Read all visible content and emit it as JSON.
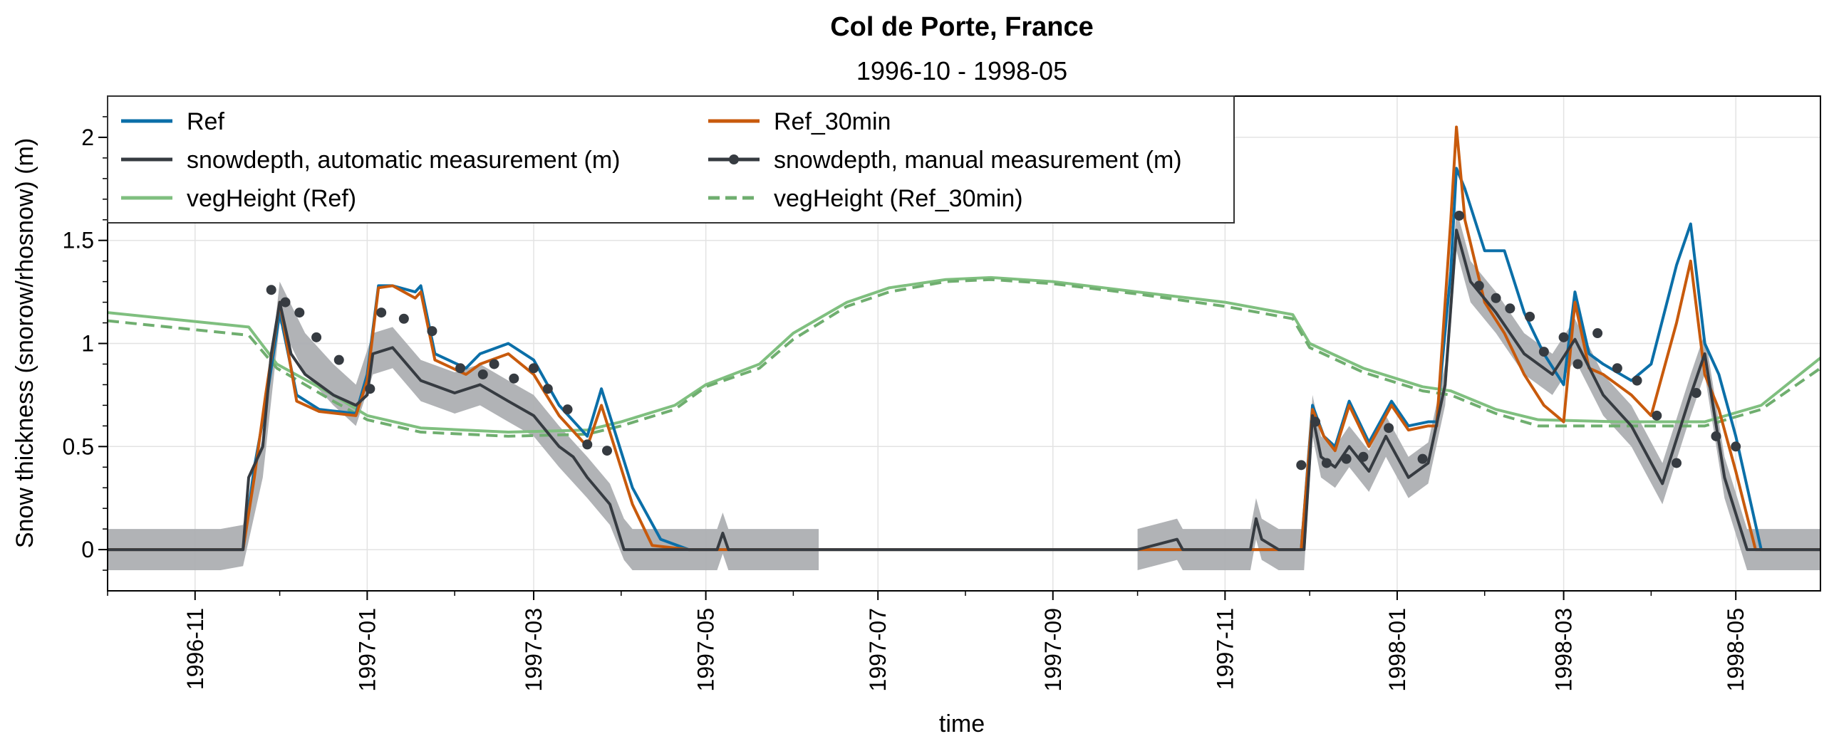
{
  "chart_data": {
    "type": "line",
    "title": "Col de Porte, France",
    "subtitle": "1996-10 - 1998-05",
    "xlabel": "time",
    "ylabel": "Snow thickness (snorow/rhosnow) (m)",
    "xlim": [
      "1996-10-01",
      "1998-05-31"
    ],
    "ylim": [
      -0.2,
      2.2
    ],
    "x_ticks": [
      "1996-11",
      "1997-01",
      "1997-03",
      "1997-05",
      "1997-07",
      "1997-09",
      "1997-11",
      "1998-01",
      "1998-03",
      "1998-05"
    ],
    "y_ticks": [
      {
        "value": 0,
        "label": "0"
      },
      {
        "value": 0.5,
        "label": "0.5"
      },
      {
        "value": 1,
        "label": "1"
      },
      {
        "value": 1.5,
        "label": "1.5"
      },
      {
        "value": 2,
        "label": "2"
      }
    ],
    "grid": true,
    "legend": {
      "position": "top-left",
      "columns": 2,
      "entries": [
        {
          "label": "Ref",
          "color": "#0b6fa8",
          "style": "solid"
        },
        {
          "label": "Ref_30min",
          "color": "#c85a0c",
          "style": "solid"
        },
        {
          "label": "snowdepth, automatic measurement (m)",
          "color": "#363b41",
          "style": "solid"
        },
        {
          "label": "snowdepth, manual measurement (m)",
          "color": "#363b41",
          "style": "solid-marker"
        },
        {
          "label": "vegHeight (Ref)",
          "color": "#7fbf7f",
          "style": "solid"
        },
        {
          "label": "vegHeight (Ref_30min)",
          "color": "#6fae6f",
          "style": "dashed"
        }
      ]
    },
    "band": {
      "color": "#a8abae",
      "half_width": 0.1,
      "segments": [
        {
          "x": [
            "1996-10-01",
            "1996-11-10",
            "1996-11-18",
            "1996-11-25",
            "1996-12-01",
            "1996-12-10",
            "1996-12-20",
            "1996-12-28",
            "1997-01-03",
            "1997-01-10",
            "1997-01-20",
            "1997-02-01",
            "1997-02-10",
            "1997-02-20",
            "1997-03-01",
            "1997-03-10",
            "1997-03-20",
            "1997-03-28",
            "1997-04-02",
            "1997-04-05",
            "1997-05-05",
            "1997-05-07",
            "1997-05-09",
            "1997-06-10"
          ],
          "y": [
            0,
            0,
            0.02,
            0.45,
            1.2,
            0.95,
            0.8,
            0.7,
            0.95,
            0.98,
            0.82,
            0.76,
            0.8,
            0.72,
            0.65,
            0.5,
            0.35,
            0.22,
            0.05,
            0,
            0,
            0.08,
            0,
            0
          ]
        },
        {
          "x": [
            "1997-10-01",
            "1997-10-15",
            "1997-10-17",
            "1997-11-10",
            "1997-11-12",
            "1997-11-14",
            "1997-11-20",
            "1997-11-29",
            "1997-12-02",
            "1997-12-05",
            "1997-12-10",
            "1997-12-15",
            "1997-12-22",
            "1997-12-28",
            "1998-01-05",
            "1998-01-12",
            "1998-01-18",
            "1998-01-22",
            "1998-01-27",
            "1998-02-05",
            "1998-02-15",
            "1998-02-25",
            "1998-03-05",
            "1998-03-15",
            "1998-03-25",
            "1998-04-05",
            "1998-04-15",
            "1998-04-20",
            "1998-04-27",
            "1998-05-05",
            "1998-05-31"
          ],
          "y": [
            0,
            0.05,
            0,
            0,
            0.15,
            0.05,
            0,
            0,
            0.65,
            0.45,
            0.4,
            0.5,
            0.38,
            0.55,
            0.35,
            0.42,
            0.8,
            1.55,
            1.3,
            1.15,
            0.95,
            0.85,
            1.02,
            0.75,
            0.6,
            0.32,
            0.75,
            0.95,
            0.35,
            0,
            0
          ]
        }
      ]
    },
    "series": [
      {
        "name": "vegHeight (Ref)",
        "color": "#7fbf7f",
        "dash": false,
        "x": [
          "1996-10-01",
          "1996-11-20",
          "1996-11-30",
          "1996-12-20",
          "1997-01-01",
          "1997-01-20",
          "1997-02-20",
          "1997-03-20",
          "1997-04-01",
          "1997-04-20",
          "1997-05-01",
          "1997-05-20",
          "1997-06-01",
          "1997-06-20",
          "1997-07-05",
          "1997-07-25",
          "1997-08-10",
          "1997-09-01",
          "1997-10-01",
          "1997-11-01",
          "1997-11-25",
          "1997-12-01",
          "1997-12-20",
          "1998-01-10",
          "1998-01-20",
          "1998-02-05",
          "1998-02-20",
          "1998-03-20",
          "1998-04-20",
          "1998-05-10",
          "1998-05-31"
        ],
        "y": [
          1.15,
          1.08,
          0.9,
          0.75,
          0.65,
          0.59,
          0.57,
          0.58,
          0.62,
          0.7,
          0.8,
          0.9,
          1.05,
          1.2,
          1.27,
          1.31,
          1.32,
          1.3,
          1.25,
          1.2,
          1.14,
          1.0,
          0.88,
          0.79,
          0.77,
          0.68,
          0.63,
          0.62,
          0.62,
          0.7,
          0.93
        ]
      },
      {
        "name": "vegHeight (Ref_30min)",
        "color": "#6fae6f",
        "dash": true,
        "x": [
          "1996-10-01",
          "1996-11-20",
          "1996-11-30",
          "1996-12-20",
          "1997-01-01",
          "1997-01-20",
          "1997-02-20",
          "1997-03-20",
          "1997-04-01",
          "1997-04-20",
          "1997-05-01",
          "1997-05-20",
          "1997-06-01",
          "1997-06-20",
          "1997-07-05",
          "1997-07-25",
          "1997-08-10",
          "1997-09-01",
          "1997-10-01",
          "1997-11-01",
          "1997-11-25",
          "1997-12-01",
          "1997-12-20",
          "1998-01-10",
          "1998-01-20",
          "1998-02-05",
          "1998-02-20",
          "1998-03-20",
          "1998-04-20",
          "1998-05-10",
          "1998-05-31"
        ],
        "y": [
          1.11,
          1.04,
          0.88,
          0.72,
          0.63,
          0.57,
          0.55,
          0.56,
          0.6,
          0.68,
          0.79,
          0.88,
          1.02,
          1.18,
          1.25,
          1.3,
          1.31,
          1.29,
          1.24,
          1.18,
          1.12,
          0.98,
          0.86,
          0.77,
          0.75,
          0.66,
          0.6,
          0.6,
          0.6,
          0.68,
          0.88
        ]
      },
      {
        "name": "Ref",
        "color": "#0b6fa8",
        "dash": false,
        "x": [
          "1996-10-01",
          "1996-11-18",
          "1996-11-22",
          "1996-11-26",
          "1996-12-01",
          "1996-12-07",
          "1996-12-15",
          "1996-12-28",
          "1997-01-01",
          "1997-01-05",
          "1997-01-10",
          "1997-01-18",
          "1997-01-20",
          "1997-01-25",
          "1997-02-05",
          "1997-02-10",
          "1997-02-20",
          "1997-03-01",
          "1997-03-10",
          "1997-03-20",
          "1997-03-25",
          "1997-04-05",
          "1997-04-15",
          "1997-04-25",
          "1997-10-01",
          "1997-11-28",
          "1997-12-02",
          "1997-12-06",
          "1997-12-10",
          "1997-12-15",
          "1997-12-22",
          "1997-12-30",
          "1998-01-05",
          "1998-01-12",
          "1998-01-15",
          "1998-01-20",
          "1998-01-22",
          "1998-01-25",
          "1998-02-01",
          "1998-02-08",
          "1998-02-15",
          "1998-02-22",
          "1998-03-01",
          "1998-03-05",
          "1998-03-10",
          "1998-03-15",
          "1998-03-25",
          "1998-04-01",
          "1998-04-10",
          "1998-04-15",
          "1998-04-20",
          "1998-04-25",
          "1998-05-01",
          "1998-05-10",
          "1998-05-31"
        ],
        "y": [
          0,
          0,
          0.4,
          0.7,
          1.15,
          0.75,
          0.68,
          0.66,
          0.85,
          1.28,
          1.28,
          1.25,
          1.28,
          0.95,
          0.88,
          0.95,
          1.0,
          0.92,
          0.7,
          0.55,
          0.78,
          0.3,
          0.05,
          0,
          0,
          0,
          0.7,
          0.55,
          0.5,
          0.72,
          0.52,
          0.72,
          0.6,
          0.62,
          0.62,
          1.35,
          1.85,
          1.75,
          1.45,
          1.45,
          1.15,
          0.95,
          0.8,
          1.25,
          0.95,
          0.9,
          0.82,
          0.9,
          1.38,
          1.58,
          1.0,
          0.85,
          0.55,
          0,
          0
        ]
      },
      {
        "name": "Ref_30min",
        "color": "#c85a0c",
        "dash": false,
        "x": [
          "1996-10-01",
          "1996-11-18",
          "1996-11-22",
          "1996-11-26",
          "1996-12-01",
          "1996-12-07",
          "1996-12-15",
          "1996-12-28",
          "1997-01-01",
          "1997-01-05",
          "1997-01-10",
          "1997-01-18",
          "1997-01-20",
          "1997-01-25",
          "1997-02-05",
          "1997-02-10",
          "1997-02-20",
          "1997-03-01",
          "1997-03-10",
          "1997-03-20",
          "1997-03-25",
          "1997-04-05",
          "1997-04-12",
          "1997-04-25",
          "1997-10-01",
          "1997-11-28",
          "1997-12-02",
          "1997-12-06",
          "1997-12-10",
          "1997-12-15",
          "1997-12-22",
          "1997-12-30",
          "1998-01-05",
          "1998-01-12",
          "1998-01-15",
          "1998-01-20",
          "1998-01-22",
          "1998-01-25",
          "1998-02-01",
          "1998-02-08",
          "1998-02-15",
          "1998-02-22",
          "1998-03-01",
          "1998-03-05",
          "1998-03-10",
          "1998-03-15",
          "1998-03-25",
          "1998-04-01",
          "1998-04-10",
          "1998-04-15",
          "1998-04-20",
          "1998-04-25",
          "1998-05-01",
          "1998-05-08",
          "1998-05-31"
        ],
        "y": [
          0,
          0,
          0.35,
          0.75,
          1.2,
          0.72,
          0.67,
          0.65,
          0.82,
          1.27,
          1.28,
          1.22,
          1.25,
          0.92,
          0.85,
          0.9,
          0.95,
          0.85,
          0.65,
          0.5,
          0.7,
          0.22,
          0.02,
          0,
          0,
          0,
          0.68,
          0.55,
          0.48,
          0.7,
          0.5,
          0.7,
          0.58,
          0.6,
          0.6,
          1.6,
          2.05,
          1.6,
          1.2,
          1.05,
          0.85,
          0.7,
          0.62,
          1.2,
          0.88,
          0.85,
          0.75,
          0.65,
          1.1,
          1.4,
          0.85,
          0.68,
          0.38,
          0,
          0
        ]
      },
      {
        "name": "snowdepth, automatic measurement (m)",
        "color": "#363b41",
        "dash": false,
        "x": [
          "1996-10-01",
          "1996-11-18",
          "1996-11-20",
          "1996-11-25",
          "1996-11-28",
          "1996-12-01",
          "1996-12-05",
          "1996-12-10",
          "1996-12-15",
          "1996-12-20",
          "1996-12-28",
          "1997-01-01",
          "1997-01-03",
          "1997-01-10",
          "1997-01-20",
          "1997-02-01",
          "1997-02-10",
          "1997-02-20",
          "1997-03-01",
          "1997-03-10",
          "1997-03-15",
          "1997-03-20",
          "1997-03-28",
          "1997-04-02",
          "1997-05-05",
          "1997-05-07",
          "1997-05-09",
          "1997-06-10",
          "1997-10-01",
          "1997-10-15",
          "1997-10-17",
          "1997-11-10",
          "1997-11-12",
          "1997-11-14",
          "1997-11-20",
          "1997-11-29",
          "1997-12-02",
          "1997-12-05",
          "1997-12-10",
          "1997-12-15",
          "1997-12-22",
          "1997-12-28",
          "1998-01-05",
          "1998-01-12",
          "1998-01-18",
          "1998-01-22",
          "1998-01-27",
          "1998-02-05",
          "1998-02-15",
          "1998-02-25",
          "1998-03-05",
          "1998-03-15",
          "1998-03-25",
          "1998-04-05",
          "1998-04-15",
          "1998-04-20",
          "1998-04-27",
          "1998-05-05",
          "1998-05-31"
        ],
        "y": [
          0,
          0,
          0.35,
          0.5,
          0.95,
          1.2,
          0.95,
          0.85,
          0.8,
          0.75,
          0.7,
          0.75,
          0.95,
          0.98,
          0.82,
          0.76,
          0.8,
          0.72,
          0.65,
          0.5,
          0.45,
          0.35,
          0.22,
          0,
          0,
          0.08,
          0,
          0,
          0,
          0.05,
          0,
          0,
          0.15,
          0.05,
          0,
          0,
          0.65,
          0.45,
          0.4,
          0.5,
          0.38,
          0.55,
          0.35,
          0.42,
          0.8,
          1.55,
          1.3,
          1.15,
          0.95,
          0.85,
          1.02,
          0.75,
          0.6,
          0.32,
          0.75,
          0.95,
          0.35,
          0,
          0
        ]
      },
      {
        "name": "snowdepth, manual measurement (m)",
        "color": "#363b41",
        "marker": true,
        "x": [
          "1996-11-28",
          "1996-12-03",
          "1996-12-08",
          "1996-12-14",
          "1996-12-22",
          "1997-01-02",
          "1997-01-06",
          "1997-01-14",
          "1997-01-24",
          "1997-02-03",
          "1997-02-11",
          "1997-02-15",
          "1997-02-22",
          "1997-03-01",
          "1997-03-06",
          "1997-03-13",
          "1997-03-20",
          "1997-03-27",
          "1997-11-28",
          "1997-12-03",
          "1997-12-07",
          "1997-12-14",
          "1997-12-20",
          "1997-12-29",
          "1998-01-10",
          "1998-01-23",
          "1998-01-30",
          "1998-02-05",
          "1998-02-10",
          "1998-02-17",
          "1998-02-22",
          "1998-03-01",
          "1998-03-06",
          "1998-03-13",
          "1998-03-20",
          "1998-03-27",
          "1998-04-03",
          "1998-04-10",
          "1998-04-17",
          "1998-04-24",
          "1998-05-01"
        ],
        "y": [
          1.26,
          1.2,
          1.15,
          1.03,
          0.92,
          0.78,
          1.15,
          1.12,
          1.06,
          0.88,
          0.85,
          0.9,
          0.83,
          0.88,
          0.78,
          0.68,
          0.51,
          0.48,
          0.41,
          0.62,
          0.42,
          0.44,
          0.45,
          0.59,
          0.44,
          1.62,
          1.28,
          1.22,
          1.17,
          1.13,
          0.96,
          1.03,
          0.9,
          1.05,
          0.88,
          0.82,
          0.65,
          0.42,
          0.76,
          0.55,
          0.5
        ]
      }
    ]
  }
}
